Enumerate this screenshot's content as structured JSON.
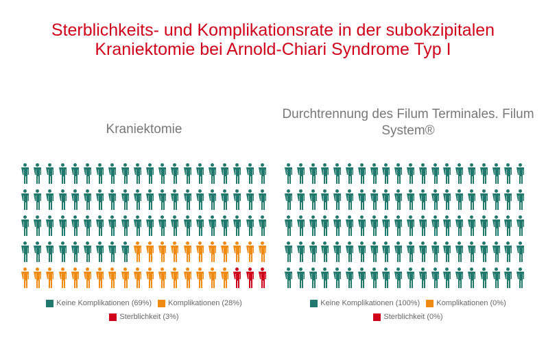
{
  "title": "Sterblichkeits- und Komplikationsrate in der subokzipitalen Kraniektomie bei Arnold-Chiari Syndrome Typ I",
  "colors": {
    "keine": "#21796d",
    "komplikationen": "#ef8a12",
    "sterblichkeit": "#d0021b"
  },
  "chart_data": [
    {
      "type": "pictogram",
      "title": "Kraniektomie",
      "total": 100,
      "columns": 20,
      "rows": 5,
      "series": [
        {
          "name": "Keine Komplikationen",
          "value": 69,
          "label": "Keine Komplikationen (69%)",
          "color": "#21796d"
        },
        {
          "name": "Komplikationen",
          "value": 28,
          "label": "Komplikationen (28%)",
          "color": "#ef8a12"
        },
        {
          "name": "Sterblichkeit",
          "value": 3,
          "label": "Sterblichkeit (3%)",
          "color": "#d0021b"
        }
      ]
    },
    {
      "type": "pictogram",
      "title": "Durchtrennung des Filum Terminales. Filum System®",
      "total": 100,
      "columns": 20,
      "rows": 5,
      "series": [
        {
          "name": "Keine Komplikationen",
          "value": 100,
          "label": "Keine Komplikationen (100%)",
          "color": "#21796d"
        },
        {
          "name": "Komplikationen",
          "value": 0,
          "label": "Komplikationen (0%)",
          "color": "#ef8a12"
        },
        {
          "name": "Sterblichkeit",
          "value": 0,
          "label": "Sterblichkeit (0%)",
          "color": "#d0021b"
        }
      ]
    }
  ]
}
